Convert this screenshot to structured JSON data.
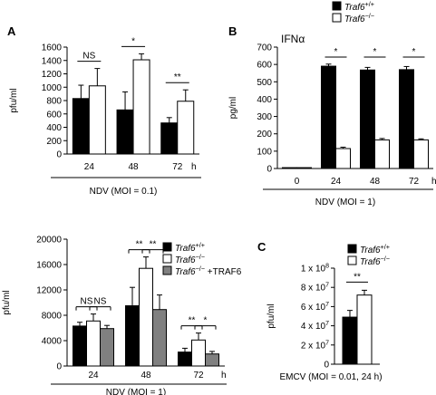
{
  "figure": {
    "top_legend": [
      {
        "label": "Traf6",
        "sup": "+/+",
        "color": "#000000"
      },
      {
        "label": "Traf6",
        "sup": "−/−",
        "color": "#ffffff"
      }
    ]
  },
  "chart_data": [
    {
      "panel": "A",
      "type": "bar",
      "ylabel": "pfu/ml",
      "ylim": [
        0,
        1600
      ],
      "yticks": [
        0,
        200,
        400,
        600,
        800,
        1000,
        1200,
        1400,
        1600
      ],
      "ytick_labels": [
        "0",
        "200",
        "400",
        "600",
        "800",
        "1000",
        "1200",
        "1400",
        "1600"
      ],
      "categories": [
        "24",
        "48",
        "72"
      ],
      "x_unit": "h",
      "xlabel": "NDV (MOI = 0.1)",
      "series": [
        {
          "name": "Traf6 +/+",
          "color": "#000000",
          "values": [
            830,
            660,
            465
          ],
          "errors": [
            200,
            270,
            80
          ]
        },
        {
          "name": "Traf6 −/−",
          "color": "#ffffff",
          "values": [
            1020,
            1410,
            790
          ],
          "errors": [
            260,
            90,
            170
          ]
        }
      ],
      "significance": [
        {
          "category": 0,
          "label": "NS",
          "from": 0,
          "to": 1
        },
        {
          "category": 1,
          "label": "*",
          "from": 0,
          "to": 1
        },
        {
          "category": 2,
          "label": "**",
          "from": 0,
          "to": 1
        }
      ]
    },
    {
      "panel": "B",
      "type": "bar",
      "title": "IFNα",
      "ylabel": "pg/ml",
      "ylim": [
        0,
        700
      ],
      "yticks": [
        0,
        100,
        200,
        300,
        400,
        500,
        600,
        700
      ],
      "ytick_labels": [
        "0",
        "100",
        "200",
        "300",
        "400",
        "500",
        "600",
        "700"
      ],
      "categories": [
        "0",
        "24",
        "48",
        "72"
      ],
      "x_unit": "h",
      "xlabel": "NDV (MOI = 1)",
      "series": [
        {
          "name": "Traf6 +/+",
          "color": "#000000",
          "values": [
            5,
            590,
            568,
            570
          ],
          "errors": [
            0,
            12,
            15,
            18
          ]
        },
        {
          "name": "Traf6 −/−",
          "color": "#ffffff",
          "values": [
            5,
            115,
            165,
            165
          ],
          "errors": [
            0,
            8,
            8,
            6
          ]
        }
      ],
      "significance": [
        {
          "category": 1,
          "label": "*",
          "from": 0,
          "to": 1
        },
        {
          "category": 2,
          "label": "*",
          "from": 0,
          "to": 1
        },
        {
          "category": 3,
          "label": "*",
          "from": 0,
          "to": 1
        }
      ]
    },
    {
      "panel": "",
      "type": "bar",
      "ylabel": "pfu/ml",
      "ylim": [
        0,
        20000
      ],
      "yticks": [
        0,
        4000,
        8000,
        12000,
        16000,
        20000
      ],
      "ytick_labels": [
        "0",
        "4000",
        "8000",
        "12000",
        "16000",
        "20000"
      ],
      "categories": [
        "24",
        "48",
        "72"
      ],
      "x_unit": "h",
      "xlabel": "NDV (MOI = 1)",
      "legend": [
        {
          "label": "Traf6",
          "sup": "+/+",
          "suffix": "",
          "color": "#000000"
        },
        {
          "label": "Traf6",
          "sup": "−/−",
          "suffix": "",
          "color": "#ffffff"
        },
        {
          "label": "Traf6",
          "sup": "−/−",
          "suffix": " +TRAF6",
          "color": "#808080"
        }
      ],
      "series": [
        {
          "name": "Traf6 +/+",
          "color": "#000000",
          "values": [
            6300,
            9500,
            2200
          ],
          "errors": [
            600,
            2900,
            600
          ]
        },
        {
          "name": "Traf6 −/−",
          "color": "#ffffff",
          "values": [
            7100,
            15400,
            4100
          ],
          "errors": [
            1100,
            1800,
            1100
          ]
        },
        {
          "name": "Traf6 −/− +TRAF6",
          "color": "#808080",
          "values": [
            5900,
            8900,
            1900
          ],
          "errors": [
            500,
            2300,
            400
          ]
        }
      ],
      "significance": [
        {
          "category": 0,
          "label": "NS",
          "from": 0,
          "to": 1
        },
        {
          "category": 0,
          "label": "NS",
          "from": 1,
          "to": 2
        },
        {
          "category": 1,
          "label": "**",
          "from": 0,
          "to": 1
        },
        {
          "category": 1,
          "label": "**",
          "from": 1,
          "to": 2
        },
        {
          "category": 2,
          "label": "**",
          "from": 0,
          "to": 1
        },
        {
          "category": 2,
          "label": "*",
          "from": 1,
          "to": 2
        }
      ]
    },
    {
      "panel": "C",
      "type": "bar",
      "ylabel": "pfu/ml",
      "ylim": [
        0,
        100000000.0
      ],
      "yticks": [
        0,
        20000000.0,
        40000000.0,
        60000000.0,
        80000000.0,
        100000000.0
      ],
      "ytick_labels": [
        {
          "base": "0",
          "exp": ""
        },
        {
          "base": "2 x 10",
          "exp": "7"
        },
        {
          "base": "4 x 10",
          "exp": "7"
        },
        {
          "base": "6 x 10",
          "exp": "7"
        },
        {
          "base": "8 x 10",
          "exp": "7"
        },
        {
          "base": "1 x 10",
          "exp": "8"
        }
      ],
      "categories": [
        ""
      ],
      "xlabel": "EMCV (MOI = 0.01, 24 h)",
      "legend": [
        {
          "label": "Traf6",
          "sup": "+/+",
          "suffix": "",
          "color": "#000000"
        },
        {
          "label": "Traf6",
          "sup": "−/−",
          "suffix": "",
          "color": "#ffffff"
        }
      ],
      "series": [
        {
          "name": "Traf6 +/+",
          "color": "#000000",
          "values": [
            49000000.0
          ],
          "errors": [
            7000000.0
          ]
        },
        {
          "name": "Traf6 −/−",
          "color": "#ffffff",
          "values": [
            72000000.0
          ],
          "errors": [
            5000000.0
          ]
        }
      ],
      "significance": [
        {
          "category": 0,
          "label": "**",
          "from": 0,
          "to": 1
        }
      ]
    }
  ]
}
